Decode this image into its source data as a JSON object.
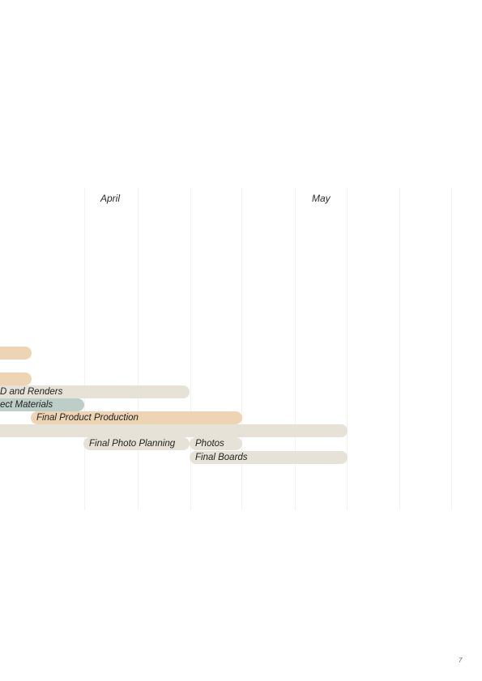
{
  "colors": {
    "tan": "#ecd4b5",
    "grey": "#e6e2d7",
    "teal": "#bdcdc7",
    "gridline": "#f4f2ee"
  },
  "timeline": {
    "months": [
      {
        "label": "April"
      },
      {
        "label": "May"
      }
    ]
  },
  "tasks": [
    {
      "label": "",
      "color": "tan"
    },
    {
      "label": "",
      "color": "tan"
    },
    {
      "label": "D and Renders",
      "color": "grey"
    },
    {
      "label": "ect Materials",
      "color": "teal"
    },
    {
      "label": "Final Product Production",
      "color": "tan"
    },
    {
      "label": "",
      "color": "grey"
    },
    {
      "label": "Final Photo Planning",
      "color": "grey"
    },
    {
      "label": "Photos",
      "color": "grey"
    },
    {
      "label": "Final Boards",
      "color": "grey"
    }
  ],
  "page": {
    "number": "7"
  }
}
